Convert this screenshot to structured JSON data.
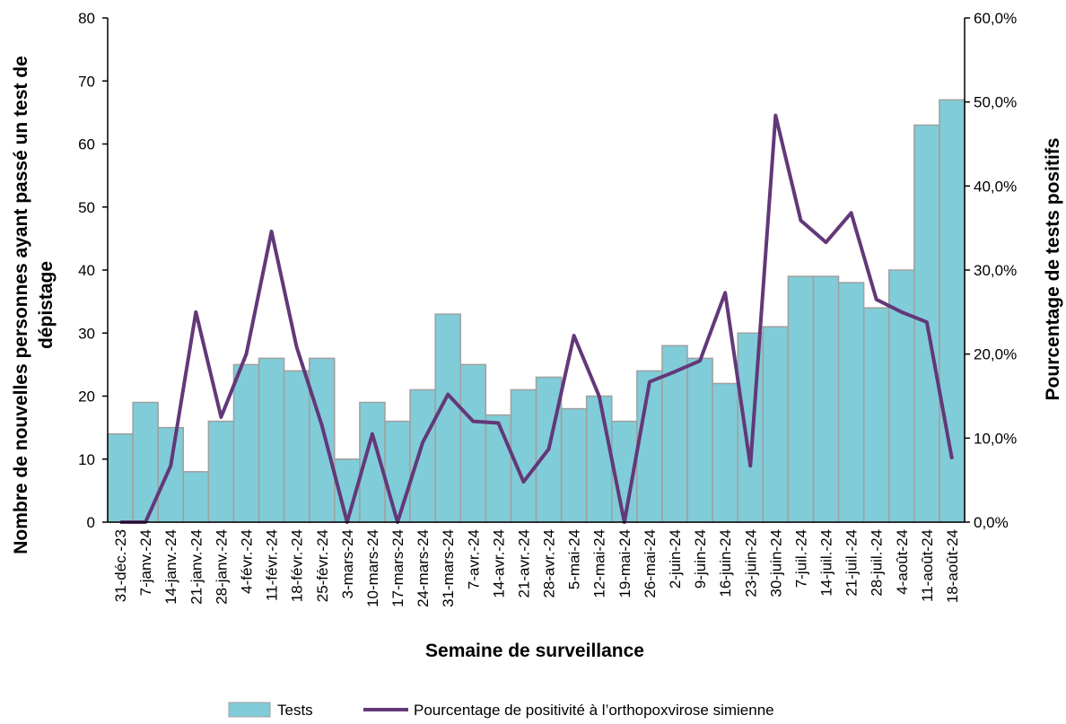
{
  "chart_data": {
    "type": "bar_line",
    "x_label": "Semaine de surveillance",
    "y_label": [
      "Nombre de nouvelles personnes ayant passé un test de",
      "dépistage"
    ],
    "y2_label": "Pourcentage de tests positifs",
    "categories": [
      "31-déc.-23",
      "7-janv.-24",
      "14-janv.-24",
      "21-janv.-24",
      "28-janv.-24",
      "4-févr.-24",
      "11-févr.-24",
      "18-févr.-24",
      "25-févr.-24",
      "3-mars-24",
      "10-mars-24",
      "17-mars-24",
      "24-mars-24",
      "31-mars-24",
      "7-avr.-24",
      "14-avr.-24",
      "21-avr.-24",
      "28-avr.-24",
      "5-mai-24",
      "12-mai-24",
      "19-mai-24",
      "26-mai-24",
      "2-juin-24",
      "9-juin-24",
      "16-juin-24",
      "23-juin-24",
      "30-juin-24",
      "7-juil.-24",
      "14-juil.-24",
      "21-juil.-24",
      "28-juil.-24",
      "4-août-24",
      "11-août-24",
      "18-août-24"
    ],
    "series": [
      {
        "name": "Tests",
        "color": "#80ccd8",
        "kind": "bar",
        "values": [
          14,
          19,
          15,
          8,
          16,
          25,
          26,
          24,
          26,
          10,
          19,
          16,
          21,
          33,
          25,
          17,
          21,
          23,
          18,
          20,
          16,
          24,
          28,
          26,
          22,
          30,
          31,
          39,
          39,
          38,
          34,
          40,
          63,
          67
        ]
      },
      {
        "name": "Pourcentage de positivité à l’orthopoxvirose simienne",
        "color": "#633878",
        "kind": "line",
        "axis": "y2",
        "values": [
          0,
          0,
          6.7,
          25,
          12.5,
          20,
          34.6,
          20.8,
          11.5,
          0,
          10.5,
          0,
          9.5,
          15.2,
          12,
          11.8,
          4.8,
          8.7,
          22.2,
          15,
          0,
          16.7,
          17.9,
          19.2,
          27.3,
          6.7,
          48.4,
          35.9,
          33.3,
          36.8,
          26.5,
          25,
          23.8,
          7.5
        ]
      }
    ],
    "ylim": [
      0,
      80
    ],
    "yticks": [
      0,
      10,
      20,
      30,
      40,
      50,
      60,
      70,
      80
    ],
    "y2lim": [
      0,
      60
    ],
    "y2ticks": [
      {
        "value": 0,
        "label": "0,0%"
      },
      {
        "value": 10,
        "label": "10,0%"
      },
      {
        "value": 20,
        "label": "20,0%"
      },
      {
        "value": 30,
        "label": "30,0%"
      },
      {
        "value": 40,
        "label": "40,0%"
      },
      {
        "value": 50,
        "label": "50,0%"
      },
      {
        "value": 60,
        "label": "60,0%"
      }
    ],
    "grid": false,
    "legend": "bottom"
  }
}
